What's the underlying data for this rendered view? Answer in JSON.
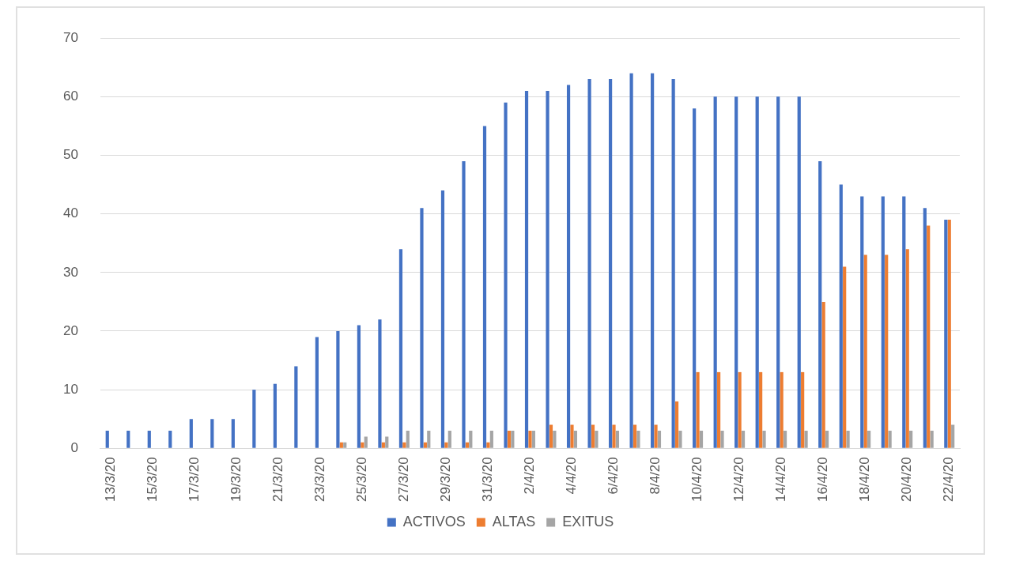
{
  "chart_data": {
    "type": "bar",
    "categories": [
      "13/3/20",
      null,
      "15/3/20",
      null,
      "17/3/20",
      null,
      "19/3/20",
      null,
      "21/3/20",
      null,
      "23/3/20",
      null,
      "25/3/20",
      null,
      "27/3/20",
      null,
      "29/3/20",
      null,
      "31/3/20",
      null,
      "2/4/20",
      null,
      "4/4/20",
      null,
      "6/4/20",
      null,
      "8/4/20",
      null,
      "10/4/20",
      null,
      "12/4/20",
      null,
      "14/4/20",
      null,
      "16/4/20",
      null,
      "18/4/20",
      null,
      "20/4/20",
      null,
      "22/4/20"
    ],
    "series": [
      {
        "name": "ACTIVOS",
        "color": "#4472c4",
        "values": [
          3,
          3,
          3,
          3,
          5,
          5,
          5,
          10,
          11,
          14,
          19,
          20,
          21,
          22,
          34,
          41,
          44,
          49,
          55,
          59,
          61,
          61,
          62,
          63,
          63,
          64,
          64,
          63,
          58,
          60,
          60,
          60,
          60,
          60,
          49,
          45,
          43,
          43,
          43,
          41,
          39
        ]
      },
      {
        "name": "ALTAS",
        "color": "#ed7d31",
        "values": [
          0,
          0,
          0,
          0,
          0,
          0,
          0,
          0,
          0,
          0,
          0,
          1,
          1,
          1,
          1,
          1,
          1,
          1,
          1,
          3,
          3,
          4,
          4,
          4,
          4,
          4,
          4,
          8,
          13,
          13,
          13,
          13,
          13,
          13,
          25,
          31,
          33,
          33,
          34,
          38,
          39
        ]
      },
      {
        "name": "EXITUS",
        "color": "#a5a5a5",
        "values": [
          0,
          0,
          0,
          0,
          0,
          0,
          0,
          0,
          0,
          0,
          0,
          1,
          2,
          2,
          3,
          3,
          3,
          3,
          3,
          3,
          3,
          3,
          3,
          3,
          3,
          3,
          3,
          3,
          3,
          3,
          3,
          3,
          3,
          3,
          3,
          3,
          3,
          3,
          3,
          3,
          4
        ]
      }
    ],
    "ylim": [
      0,
      70
    ],
    "yticks": [
      0,
      10,
      20,
      30,
      40,
      50,
      60,
      70
    ],
    "grid": "y",
    "legend": "bottom"
  }
}
